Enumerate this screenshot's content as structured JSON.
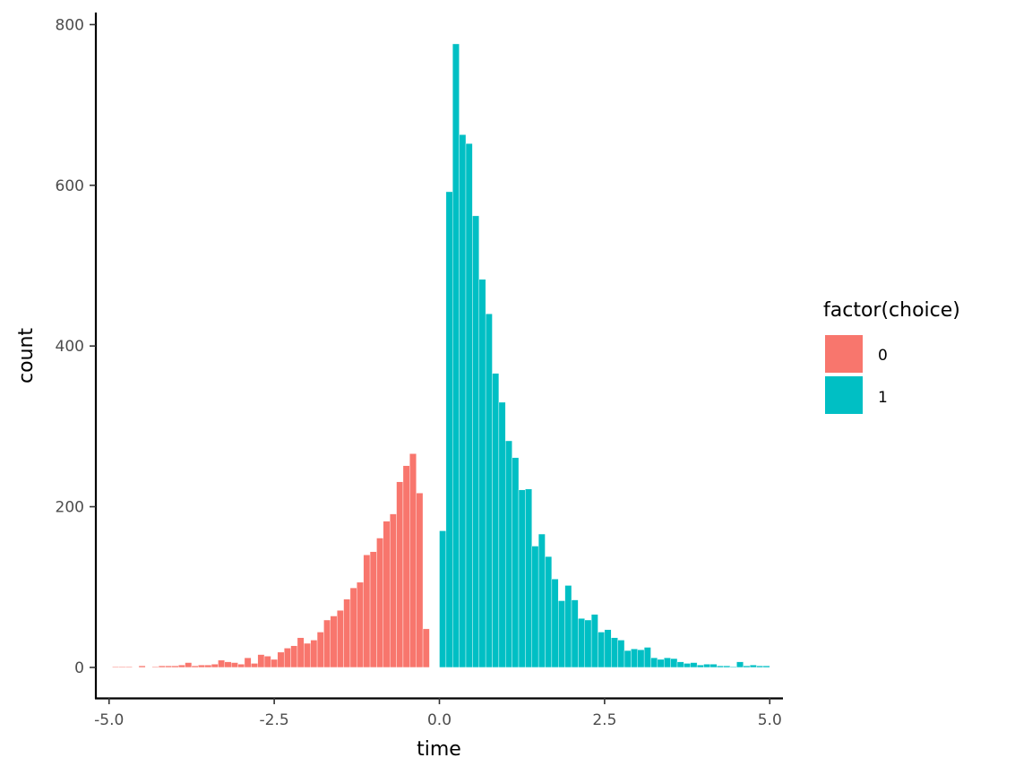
{
  "chart_data": {
    "type": "bar",
    "subtype": "histogram",
    "xlabel": "time",
    "ylabel": "count",
    "xlim": [
      -5.2,
      5.2
    ],
    "ylim": [
      -38,
      815
    ],
    "x_ticks": [
      -5.0,
      -2.5,
      0.0,
      2.5,
      5.0
    ],
    "x_tick_labels": [
      "-5.0",
      "-2.5",
      "0.0",
      "2.5",
      "5.0"
    ],
    "y_ticks": [
      0,
      200,
      400,
      600,
      800
    ],
    "y_tick_labels": [
      "0",
      "200",
      "400",
      "600",
      "800"
    ],
    "bin_width": 0.1,
    "grid": false,
    "legend": {
      "title": "factor(choice)",
      "position": "right"
    },
    "series": [
      {
        "name": "0",
        "color": "#F8766D",
        "bins": [
          {
            "x": -4.9,
            "count": 1
          },
          {
            "x": -4.8,
            "count": 1
          },
          {
            "x": -4.7,
            "count": 1
          },
          {
            "x": -4.5,
            "count": 2
          },
          {
            "x": -4.3,
            "count": 1
          },
          {
            "x": -4.2,
            "count": 2
          },
          {
            "x": -4.1,
            "count": 2
          },
          {
            "x": -4.0,
            "count": 2
          },
          {
            "x": -3.9,
            "count": 3
          },
          {
            "x": -3.8,
            "count": 6
          },
          {
            "x": -3.7,
            "count": 2
          },
          {
            "x": -3.6,
            "count": 3
          },
          {
            "x": -3.5,
            "count": 3
          },
          {
            "x": -3.4,
            "count": 4
          },
          {
            "x": -3.3,
            "count": 9
          },
          {
            "x": -3.2,
            "count": 7
          },
          {
            "x": -3.1,
            "count": 6
          },
          {
            "x": -3.0,
            "count": 4
          },
          {
            "x": -2.9,
            "count": 12
          },
          {
            "x": -2.8,
            "count": 5
          },
          {
            "x": -2.7,
            "count": 16
          },
          {
            "x": -2.6,
            "count": 14
          },
          {
            "x": -2.5,
            "count": 10
          },
          {
            "x": -2.4,
            "count": 19
          },
          {
            "x": -2.3,
            "count": 24
          },
          {
            "x": -2.2,
            "count": 27
          },
          {
            "x": -2.1,
            "count": 37
          },
          {
            "x": -2.0,
            "count": 30
          },
          {
            "x": -1.9,
            "count": 34
          },
          {
            "x": -1.8,
            "count": 44
          },
          {
            "x": -1.7,
            "count": 59
          },
          {
            "x": -1.6,
            "count": 64
          },
          {
            "x": -1.5,
            "count": 71
          },
          {
            "x": -1.4,
            "count": 85
          },
          {
            "x": -1.3,
            "count": 99
          },
          {
            "x": -1.2,
            "count": 106
          },
          {
            "x": -1.1,
            "count": 140
          },
          {
            "x": -1.0,
            "count": 144
          },
          {
            "x": -0.9,
            "count": 161
          },
          {
            "x": -0.8,
            "count": 182
          },
          {
            "x": -0.7,
            "count": 191
          },
          {
            "x": -0.6,
            "count": 231
          },
          {
            "x": -0.5,
            "count": 251
          },
          {
            "x": -0.4,
            "count": 266
          },
          {
            "x": -0.3,
            "count": 217
          },
          {
            "x": -0.2,
            "count": 48
          }
        ]
      },
      {
        "name": "1",
        "color": "#00BFC4",
        "bins": [
          {
            "x": 0.05,
            "count": 170
          },
          {
            "x": 0.15,
            "count": 592
          },
          {
            "x": 0.25,
            "count": 776
          },
          {
            "x": 0.35,
            "count": 663
          },
          {
            "x": 0.45,
            "count": 652
          },
          {
            "x": 0.55,
            "count": 562
          },
          {
            "x": 0.65,
            "count": 483
          },
          {
            "x": 0.75,
            "count": 440
          },
          {
            "x": 0.85,
            "count": 366
          },
          {
            "x": 0.95,
            "count": 330
          },
          {
            "x": 1.05,
            "count": 282
          },
          {
            "x": 1.15,
            "count": 261
          },
          {
            "x": 1.25,
            "count": 221
          },
          {
            "x": 1.35,
            "count": 222
          },
          {
            "x": 1.45,
            "count": 151
          },
          {
            "x": 1.55,
            "count": 166
          },
          {
            "x": 1.65,
            "count": 138
          },
          {
            "x": 1.75,
            "count": 110
          },
          {
            "x": 1.85,
            "count": 83
          },
          {
            "x": 1.95,
            "count": 102
          },
          {
            "x": 2.05,
            "count": 84
          },
          {
            "x": 2.15,
            "count": 61
          },
          {
            "x": 2.25,
            "count": 59
          },
          {
            "x": 2.35,
            "count": 66
          },
          {
            "x": 2.45,
            "count": 44
          },
          {
            "x": 2.55,
            "count": 47
          },
          {
            "x": 2.65,
            "count": 37
          },
          {
            "x": 2.75,
            "count": 34
          },
          {
            "x": 2.85,
            "count": 21
          },
          {
            "x": 2.95,
            "count": 23
          },
          {
            "x": 3.05,
            "count": 22
          },
          {
            "x": 3.15,
            "count": 25
          },
          {
            "x": 3.25,
            "count": 12
          },
          {
            "x": 3.35,
            "count": 10
          },
          {
            "x": 3.45,
            "count": 12
          },
          {
            "x": 3.55,
            "count": 11
          },
          {
            "x": 3.65,
            "count": 7
          },
          {
            "x": 3.75,
            "count": 5
          },
          {
            "x": 3.85,
            "count": 6
          },
          {
            "x": 3.95,
            "count": 3
          },
          {
            "x": 4.05,
            "count": 4
          },
          {
            "x": 4.15,
            "count": 4
          },
          {
            "x": 4.25,
            "count": 2
          },
          {
            "x": 4.35,
            "count": 2
          },
          {
            "x": 4.45,
            "count": 1
          },
          {
            "x": 4.55,
            "count": 7
          },
          {
            "x": 4.65,
            "count": 2
          },
          {
            "x": 4.75,
            "count": 3
          },
          {
            "x": 4.85,
            "count": 2
          },
          {
            "x": 4.95,
            "count": 2
          }
        ]
      }
    ]
  }
}
